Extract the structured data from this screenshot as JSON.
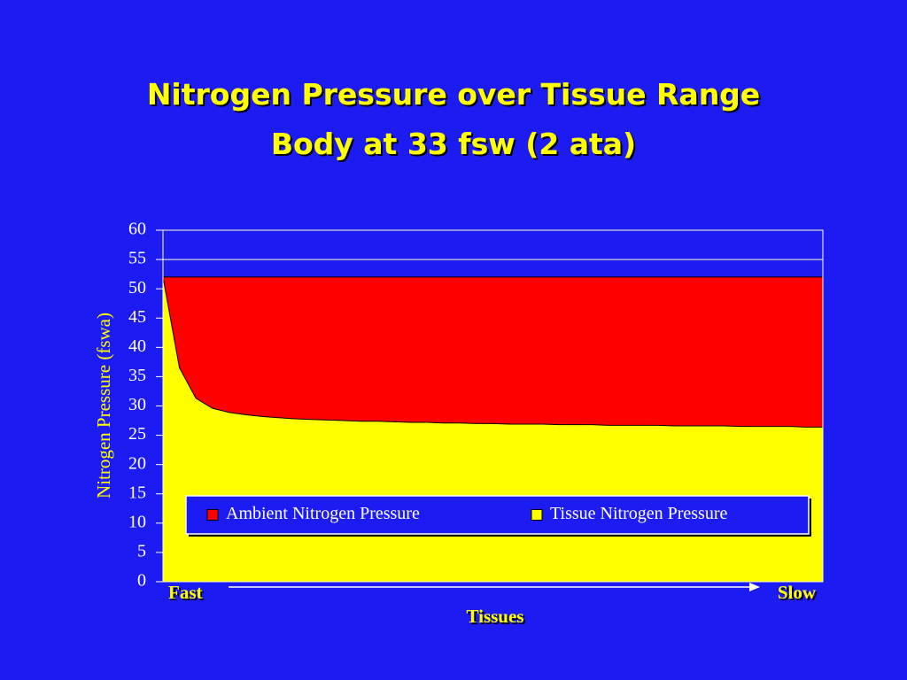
{
  "chart_data": {
    "type": "area",
    "title": "Nitrogen Pressure over Tissue Range",
    "subtitle": "Body at 33 fsw (2 ata)",
    "x_label": "Tissues",
    "y_label": "Nitrogen Pressure (fswa)",
    "categories": [
      "Fast",
      null,
      null,
      null,
      null,
      null,
      null,
      null,
      null,
      null,
      null,
      null,
      null,
      null,
      null,
      null,
      null,
      null,
      null,
      null,
      null,
      null,
      null,
      null,
      null,
      null,
      null,
      null,
      null,
      null,
      null,
      null,
      null,
      null,
      null,
      null,
      null,
      null,
      null,
      null,
      "Slow"
    ],
    "series": [
      {
        "name": "Ambient Nitrogen Pressure",
        "color": "#ff0000",
        "values": [
          52,
          52,
          52,
          52,
          52,
          52,
          52,
          52,
          52,
          52,
          52,
          52,
          52,
          52,
          52,
          52,
          52,
          52,
          52,
          52,
          52,
          52,
          52,
          52,
          52,
          52,
          52,
          52,
          52,
          52,
          52,
          52,
          52,
          52,
          52,
          52,
          52,
          52,
          52,
          52,
          52
        ]
      },
      {
        "name": "Tissue Nitrogen Pressure",
        "color": "#ffff00",
        "values": [
          52,
          36.5,
          31.3,
          29.6,
          28.9,
          28.5,
          28.2,
          28.0,
          27.8,
          27.7,
          27.6,
          27.5,
          27.4,
          27.4,
          27.3,
          27.2,
          27.2,
          27.1,
          27.1,
          27.0,
          27.0,
          26.9,
          26.9,
          26.9,
          26.8,
          26.8,
          26.8,
          26.7,
          26.7,
          26.7,
          26.7,
          26.6,
          26.6,
          26.6,
          26.6,
          26.5,
          26.5,
          26.5,
          26.5,
          26.4,
          26.4
        ]
      }
    ],
    "ylim": [
      0,
      60
    ],
    "yticks": [
      0,
      5,
      10,
      15,
      20,
      25,
      30,
      35,
      40,
      45,
      50,
      55,
      60
    ],
    "grid": true,
    "legend_position": "lower-center"
  }
}
